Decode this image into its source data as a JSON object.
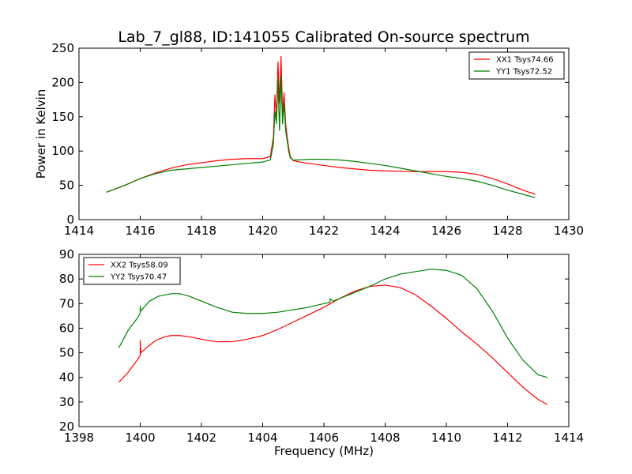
{
  "title": "Lab_7_gl88, ID:141055 Calibrated On-source spectrum",
  "colors": {
    "xx": "#ff0000",
    "yy": "#008000"
  },
  "chart_data": [
    {
      "type": "line",
      "ylabel": "Power in Kelvin",
      "xlabel": "",
      "xlim": [
        1414,
        1430
      ],
      "ylim": [
        0,
        250
      ],
      "xticks": [
        1414,
        1416,
        1418,
        1420,
        1422,
        1424,
        1426,
        1428,
        1430
      ],
      "yticks": [
        0,
        50,
        100,
        150,
        200,
        250
      ],
      "legend_position": "top-right",
      "series": [
        {
          "name": "XX1 Tsys74.66",
          "color": "#ff0000",
          "x": [
            1414.9,
            1415.5,
            1416.0,
            1416.5,
            1417.0,
            1417.5,
            1418.0,
            1418.5,
            1419.0,
            1419.5,
            1420.0,
            1420.25,
            1420.35,
            1420.4,
            1420.45,
            1420.5,
            1420.55,
            1420.6,
            1420.65,
            1420.7,
            1420.75,
            1420.8,
            1420.85,
            1420.9,
            1421.0,
            1421.2,
            1421.5,
            1422.0,
            1422.5,
            1423.0,
            1423.5,
            1424.0,
            1424.5,
            1425.0,
            1425.5,
            1426.0,
            1426.5,
            1427.0,
            1427.5,
            1428.0,
            1428.5,
            1428.9
          ],
          "y": [
            40,
            50,
            60,
            68,
            75,
            80,
            83,
            86,
            88,
            89,
            89,
            92,
            120,
            182,
            150,
            230,
            170,
            238,
            155,
            185,
            140,
            120,
            105,
            92,
            86,
            84,
            82,
            79,
            76,
            74,
            72,
            71,
            70.5,
            70,
            70,
            70,
            69,
            66,
            60,
            52,
            43,
            37
          ]
        },
        {
          "name": "YY1 Tsys72.52",
          "color": "#008000",
          "x": [
            1414.9,
            1415.5,
            1416.0,
            1416.5,
            1417.0,
            1417.5,
            1418.0,
            1418.5,
            1419.0,
            1419.5,
            1420.0,
            1420.25,
            1420.35,
            1420.4,
            1420.45,
            1420.5,
            1420.55,
            1420.6,
            1420.65,
            1420.7,
            1420.75,
            1420.8,
            1420.85,
            1420.9,
            1421.0,
            1421.2,
            1421.5,
            1422.0,
            1422.5,
            1423.0,
            1423.5,
            1424.0,
            1424.5,
            1425.0,
            1425.5,
            1426.0,
            1426.5,
            1427.0,
            1427.5,
            1428.0,
            1428.5,
            1428.9
          ],
          "y": [
            40,
            50,
            60,
            67,
            72,
            74,
            76,
            78,
            80,
            82,
            84,
            87,
            110,
            158,
            140,
            205,
            130,
            210,
            140,
            170,
            130,
            115,
            100,
            90,
            87,
            87,
            88,
            88,
            87,
            85,
            82,
            79,
            75,
            71,
            67,
            63,
            60,
            56,
            50,
            43,
            37,
            32
          ]
        }
      ]
    },
    {
      "type": "line",
      "ylabel": "",
      "xlabel": "Frequency (MHz)",
      "xlim": [
        1398,
        1414
      ],
      "ylim": [
        20,
        90
      ],
      "xticks": [
        1398,
        1400,
        1402,
        1404,
        1406,
        1408,
        1410,
        1412,
        1414
      ],
      "yticks": [
        20,
        30,
        40,
        50,
        60,
        70,
        80,
        90
      ],
      "legend_position": "top-left",
      "series": [
        {
          "name": "XX2 Tsys58.09",
          "color": "#ff0000",
          "x": [
            1399.3,
            1399.6,
            1399.9,
            1400.0,
            1400.0,
            1400.02,
            1400.2,
            1400.5,
            1400.8,
            1401.0,
            1401.3,
            1401.6,
            1402.0,
            1402.5,
            1403.0,
            1403.5,
            1404.0,
            1404.5,
            1405.0,
            1405.5,
            1406.0,
            1406.5,
            1407.0,
            1407.5,
            1408.0,
            1408.5,
            1409.0,
            1409.5,
            1410.0,
            1410.5,
            1411.0,
            1411.5,
            1412.0,
            1412.5,
            1413.0,
            1413.3
          ],
          "y": [
            38,
            42,
            47,
            49,
            55,
            50,
            52,
            55,
            56.5,
            57,
            57,
            56.5,
            55.5,
            54.5,
            54.5,
            55.5,
            57,
            59.5,
            62.5,
            65.5,
            68.5,
            72,
            75,
            77,
            77.5,
            76.5,
            73.5,
            69,
            64,
            58.5,
            53.5,
            48,
            42,
            36,
            31,
            29
          ]
        },
        {
          "name": "YY2 Tsys70.47",
          "color": "#008000",
          "x": [
            1399.3,
            1399.6,
            1399.9,
            1400.0,
            1400.0,
            1400.02,
            1400.3,
            1400.6,
            1401.0,
            1401.3,
            1401.6,
            1402.0,
            1402.5,
            1403.0,
            1403.5,
            1404.0,
            1404.5,
            1405.0,
            1405.5,
            1406.0,
            1406.2,
            1406.2,
            1406.3,
            1406.5,
            1407.0,
            1407.5,
            1408.0,
            1408.5,
            1409.0,
            1409.5,
            1410.0,
            1410.5,
            1411.0,
            1411.5,
            1412.0,
            1412.5,
            1413.0,
            1413.3
          ],
          "y": [
            52,
            59,
            64,
            66,
            69,
            67,
            71,
            73,
            74,
            74,
            73,
            71,
            68.5,
            66.5,
            66,
            66,
            66.5,
            67.5,
            68.5,
            70,
            70.5,
            72,
            71,
            72,
            74.5,
            77,
            80,
            82,
            83,
            84,
            83.5,
            81.5,
            76,
            67,
            56,
            47,
            41,
            40
          ]
        }
      ]
    }
  ]
}
